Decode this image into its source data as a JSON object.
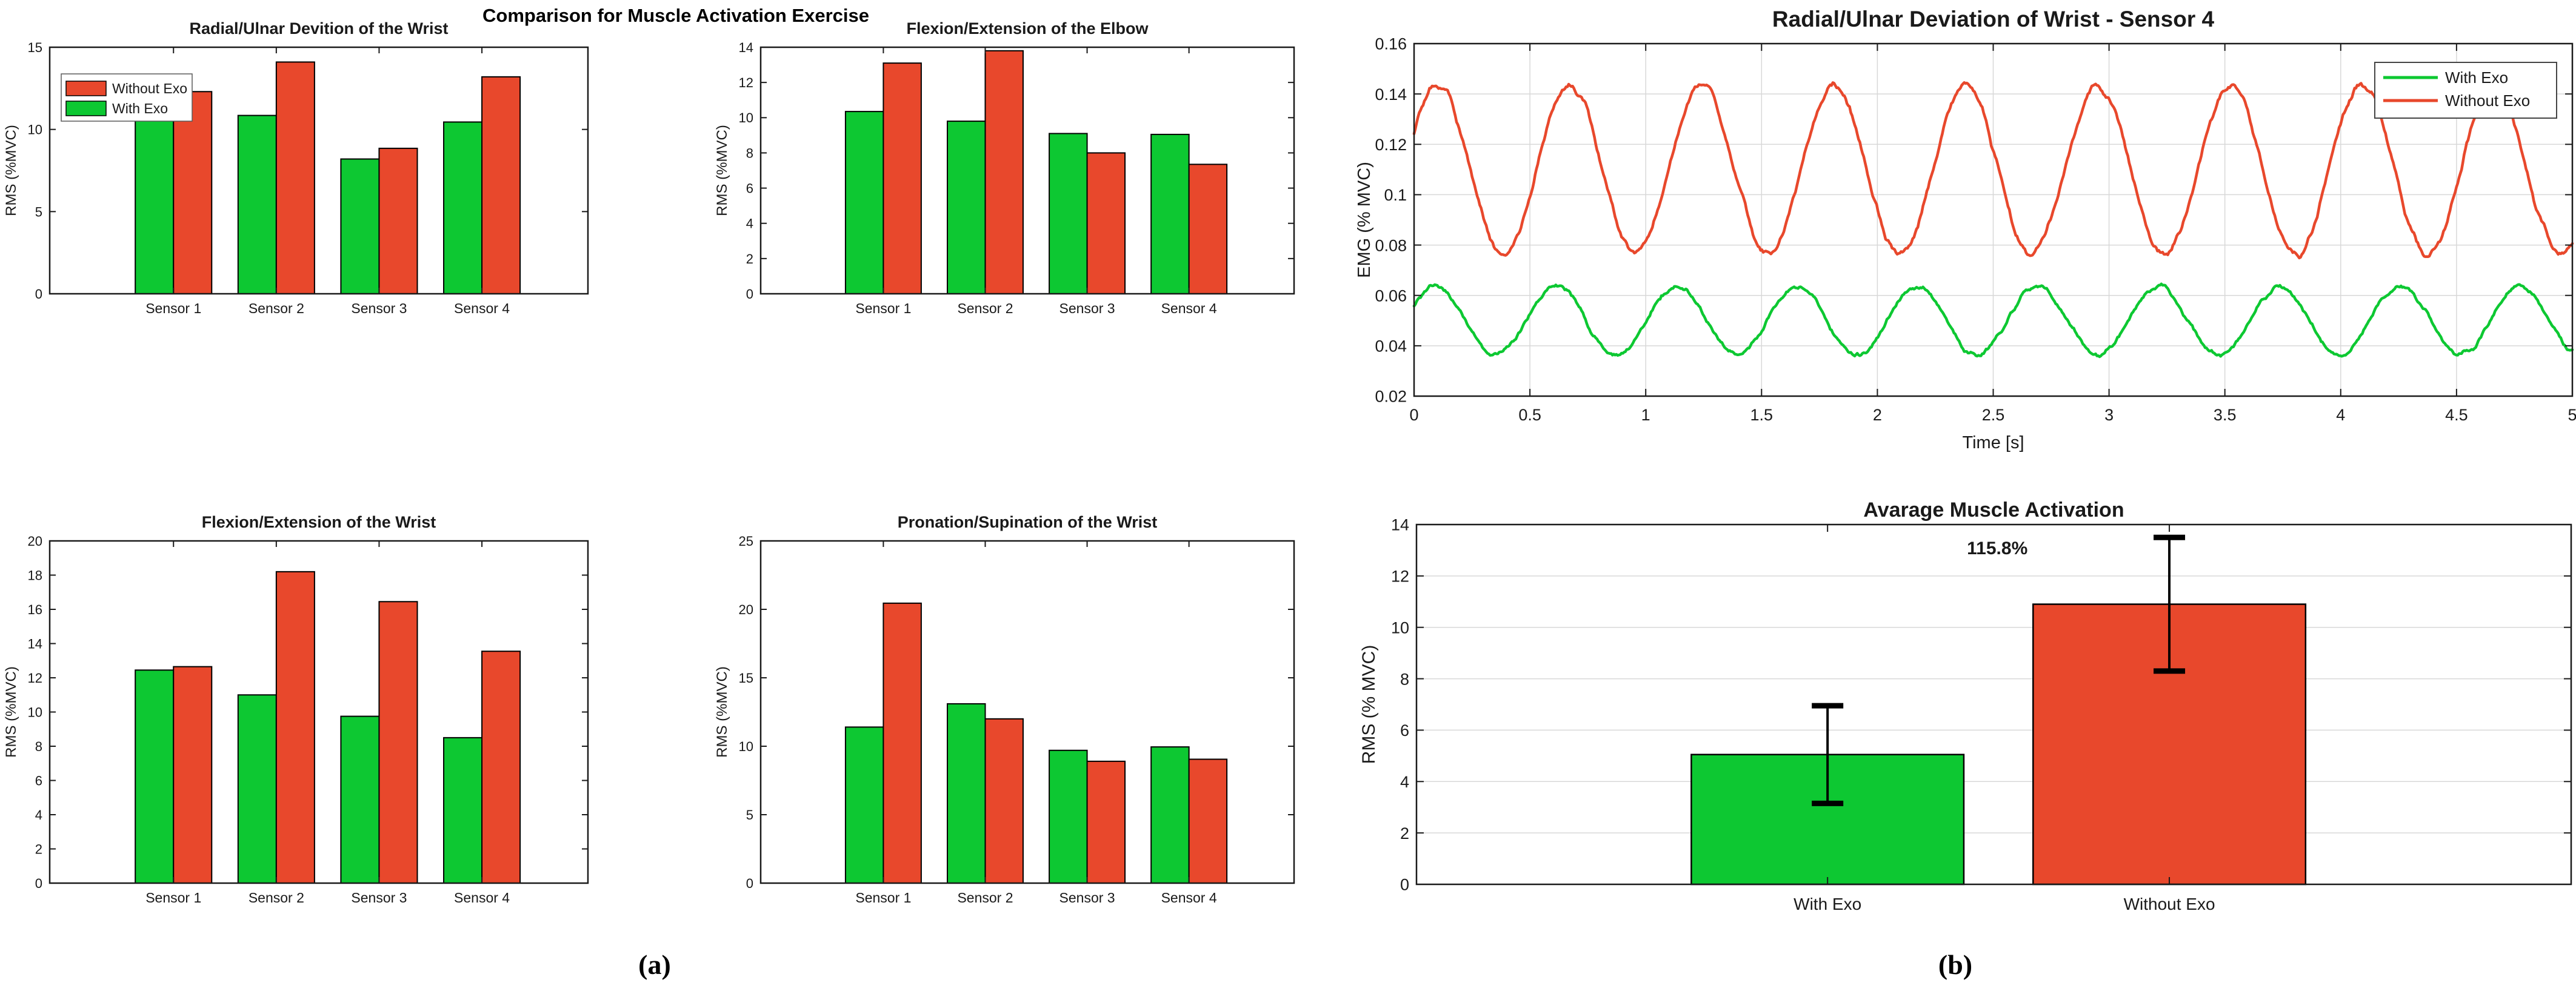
{
  "panel_a": {
    "suptitle": "Comparison for Muscle Activation Exercise",
    "caption": "(a)"
  },
  "panel_b": {
    "caption": "(b)"
  },
  "colors": {
    "with_exo_green": "#0dc832",
    "without_exo_red": "#e8482c",
    "annotation_red": "#ff0000",
    "grid_gray": "#d8d8d8",
    "axis_black": "#1a1a1a"
  },
  "chart_data": [
    {
      "id": "radial_ulnar_bar",
      "type": "bar",
      "title": "Radial/Ulnar Devition of the Wrist",
      "ylabel": "RMS (%MVC)",
      "categories": [
        "Sensor 1",
        "Sensor 2",
        "Sensor 3",
        "Sensor 4"
      ],
      "series": [
        {
          "name": "With Exo",
          "color": "#0dc832",
          "values": [
            12.5,
            10.85,
            8.2,
            10.45
          ]
        },
        {
          "name": "Without Exo",
          "color": "#e8482c",
          "values": [
            12.3,
            14.1,
            8.85,
            13.2
          ]
        }
      ],
      "ylim": [
        0,
        15
      ],
      "ytick_step": 5,
      "grid": false,
      "legend": {
        "show": true,
        "position": "northwest",
        "entries": [
          {
            "label": "Without Exo",
            "color": "#e8482c"
          },
          {
            "label": "With Exo",
            "color": "#0dc832"
          }
        ]
      }
    },
    {
      "id": "elbow_flexion_bar",
      "type": "bar",
      "title": "Flexion/Extension of the Elbow",
      "ylabel": "RMS (%MVC)",
      "categories": [
        "Sensor 1",
        "Sensor 2",
        "Sensor 3",
        "Sensor 4"
      ],
      "series": [
        {
          "name": "With Exo",
          "color": "#0dc832",
          "values": [
            10.35,
            9.8,
            9.1,
            9.05
          ]
        },
        {
          "name": "Without Exo",
          "color": "#e8482c",
          "values": [
            13.1,
            13.8,
            8.0,
            7.35
          ]
        }
      ],
      "ylim": [
        0,
        14
      ],
      "ytick_step": 2,
      "grid": false,
      "legend": {
        "show": false
      }
    },
    {
      "id": "wrist_flexion_bar",
      "type": "bar",
      "title": "Flexion/Extension of the Wrist",
      "ylabel": "RMS (%MVC)",
      "categories": [
        "Sensor 1",
        "Sensor 2",
        "Sensor 3",
        "Sensor 4"
      ],
      "series": [
        {
          "name": "With Exo",
          "color": "#0dc832",
          "values": [
            12.45,
            11.0,
            9.75,
            8.5
          ]
        },
        {
          "name": "Without Exo",
          "color": "#e8482c",
          "values": [
            12.65,
            18.2,
            16.45,
            13.55
          ]
        }
      ],
      "ylim": [
        0,
        20
      ],
      "ytick_step": 2,
      "grid": false,
      "legend": {
        "show": false
      }
    },
    {
      "id": "pronation_bar",
      "type": "bar",
      "title": "Pronation/Supination of the Wrist",
      "ylabel": "RMS (%MVC)",
      "categories": [
        "Sensor 1",
        "Sensor 2",
        "Sensor 3",
        "Sensor 4"
      ],
      "series": [
        {
          "name": "With Exo",
          "color": "#0dc832",
          "values": [
            11.4,
            13.1,
            9.7,
            9.95
          ]
        },
        {
          "name": "Without Exo",
          "color": "#e8482c",
          "values": [
            20.45,
            12.0,
            8.9,
            9.05
          ]
        }
      ],
      "ylim": [
        0,
        25
      ],
      "ytick_step": 5,
      "grid": false,
      "legend": {
        "show": false
      }
    },
    {
      "id": "emg_line",
      "type": "line",
      "title": "Radial/Ulnar Deviation of Wrist - Sensor 4",
      "xlabel": "Time [s]",
      "ylabel": "EMG (% MVC)",
      "xlim": [
        0,
        5
      ],
      "xtick_step": 0.5,
      "ylim": [
        0.02,
        0.16
      ],
      "ytick_step": 0.02,
      "grid": true,
      "legend": {
        "show": true,
        "position": "northeast",
        "entries": [
          {
            "label": "With Exo",
            "color": "#0dc832"
          },
          {
            "label": "Without Exo",
            "color": "#e8482c"
          }
        ]
      },
      "series": [
        {
          "name": "With Exo",
          "color": "#0dc832",
          "baseline": 0.05,
          "amplitude": 0.0135,
          "period_s": 0.52,
          "phase_rad": 0.45,
          "noise_amp": 0.0014,
          "seed": 7,
          "approx_range": [
            0.036,
            0.065
          ]
        },
        {
          "name": "Without Exo",
          "color": "#e8482c",
          "baseline": 0.11,
          "amplitude": 0.0335,
          "period_s": 0.57,
          "phase_rad": 0.45,
          "noise_amp": 0.002,
          "seed": 3,
          "approx_range": [
            0.073,
            0.147
          ]
        }
      ]
    },
    {
      "id": "average_activation_bar",
      "type": "bar-error",
      "title": "Avarage Muscle Activation",
      "ylabel": "RMS (% MVC)",
      "categories": [
        "With Exo",
        "Without Exo"
      ],
      "values": [
        5.05,
        10.9
      ],
      "errors": [
        1.9,
        2.6
      ],
      "colors": [
        "#0dc832",
        "#e8482c"
      ],
      "ylim": [
        0,
        14
      ],
      "ytick_step": 2,
      "grid": true,
      "annotation": {
        "text": "115.8%",
        "color": "#ff0000",
        "x_frac": 0.503,
        "y_value": 12.85
      }
    }
  ]
}
